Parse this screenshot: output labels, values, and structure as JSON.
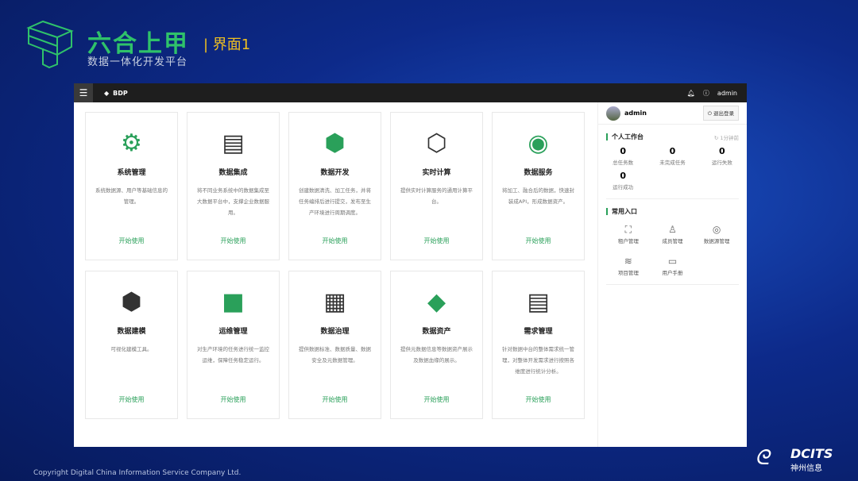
{
  "brand": {
    "name": "六合上甲",
    "subtitle": "数据一体化开发平台",
    "screen_label": "| 界面1"
  },
  "topbar": {
    "menu_icon": "hamburger-icon",
    "app_name": "BDP",
    "user": "admin"
  },
  "cards": [
    {
      "title": "系统管理",
      "desc": "系统数据源、用户等基础信息的管理。",
      "action": "开始使用"
    },
    {
      "title": "数据集成",
      "desc": "将不同业务系统中的数据集成至大数据平台中，支撑企业数据服用。",
      "action": "开始使用"
    },
    {
      "title": "数据开发",
      "desc": "创建数据清洗、加工任务，并将任务编排后进行提交，发布至生产环境进行周期调度。",
      "action": "开始使用"
    },
    {
      "title": "实时计算",
      "desc": "提供实时计算服务的通用计算平台。",
      "action": "开始使用"
    },
    {
      "title": "数据服务",
      "desc": "将加工、融合后的数据，快速封装成API，形成数据资产。",
      "action": "开始使用"
    },
    {
      "title": "数据建模",
      "desc": "可视化建模工具。",
      "action": "开始使用"
    },
    {
      "title": "运维管理",
      "desc": "对生产环境的任务进行统一监控运维，保障任务稳定运行。",
      "action": "开始使用"
    },
    {
      "title": "数据治理",
      "desc": "提供数据标准、数据质量、数据安全及元数据管理。",
      "action": "开始使用"
    },
    {
      "title": "数据资产",
      "desc": "提供元数据信息等数据资产展示及数据血缘的展示。",
      "action": "开始使用"
    },
    {
      "title": "需求管理",
      "desc": "针对数据中台的整体需求统一管理，对整体开发需求进行按照各维度进行统计分析。",
      "action": "开始使用"
    }
  ],
  "panel": {
    "user": "admin",
    "logout": "退出登录",
    "workbench": {
      "title": "个人工作台",
      "refresh": "1分钟前",
      "stats": [
        {
          "value": "0",
          "label": "总任务数"
        },
        {
          "value": "0",
          "label": "未完成任务"
        },
        {
          "value": "0",
          "label": "运行失败"
        },
        {
          "value": "0",
          "label": "运行成功"
        }
      ]
    },
    "shortcuts": {
      "title": "常用入口",
      "items": [
        {
          "label": "租户管理",
          "icon": "tenant-icon"
        },
        {
          "label": "成员管理",
          "icon": "user-icon"
        },
        {
          "label": "数据源管理",
          "icon": "datasource-icon"
        },
        {
          "label": "项目管理",
          "icon": "layers-icon"
        },
        {
          "label": "用户手册",
          "icon": "manual-icon"
        }
      ]
    }
  },
  "footer": {
    "copyright": "Copyright  Digital China Information Service Company Ltd.",
    "logo_text": "DCITS",
    "logo_cn": "神州信息"
  },
  "colors": {
    "accent": "#2aa05a",
    "topbar": "#1e1e1e",
    "background": "#0d2a8a"
  }
}
